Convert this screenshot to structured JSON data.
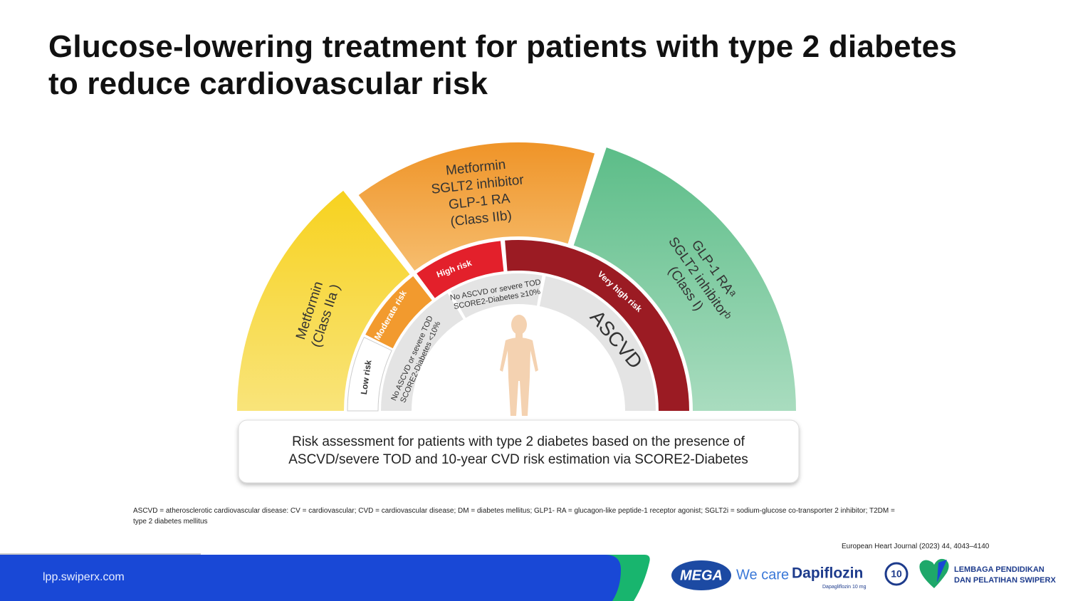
{
  "title": "Glucose-lowering treatment for patients with type 2 diabetes to reduce cardiovascular risk",
  "diagram": {
    "treatments": [
      {
        "lines": [
          "Metformin",
          "(Class IIa )"
        ]
      },
      {
        "lines": [
          "Metformin",
          "SGLT2 inhibitor",
          "GLP-1 RA",
          "(Class IIb)"
        ]
      },
      {
        "lines": [
          "GLP-1 RAᵃ",
          "SGLT2 inhibitorᵇ",
          "(Class I)"
        ]
      }
    ],
    "risk_levels": [
      "Low risk",
      "Moderate risk",
      "High risk",
      "Very high risk"
    ],
    "categories": [
      {
        "lines": [
          "No ASCVD or severe TOD",
          "SCORE2-Diabetes <10%"
        ]
      },
      {
        "lines": [
          "No ASCVD or severe TOD",
          "SCORE2-Diabetes ≥10%"
        ]
      },
      {
        "lines": [
          "ASCVD"
        ]
      }
    ],
    "caption": [
      "Risk assessment for patients with type 2 diabetes based on the presence of",
      "ASCVD/severe TOD and 10-year CVD risk estimation via SCORE2-Diabetes"
    ]
  },
  "footnote": "ASCVD = atherosclerotic cardiovascular disease: CV = cardiovascular; CVD = cardiovascular disease; DM = diabetes mellitus; GLP1- RA = glucagon-like peptide-1 receptor agonist; SGLT2i = sodium-glucose co-transporter 2 inhibitor; T2DM = type 2 diabetes mellitus",
  "citation": "European Heart Journal (2023) 44, 4043–4140",
  "footer": {
    "url": "lpp.swiperx.com",
    "brand": "MEGA",
    "tagline": "We care",
    "product": "Dapiflozin",
    "product_subtitle": "Dapagliflozin 10 mg",
    "dose_badge": "10",
    "institution": [
      "LEMBAGA PENDIDIKAN",
      "DAN PELATIHAN SWIPERX"
    ]
  }
}
